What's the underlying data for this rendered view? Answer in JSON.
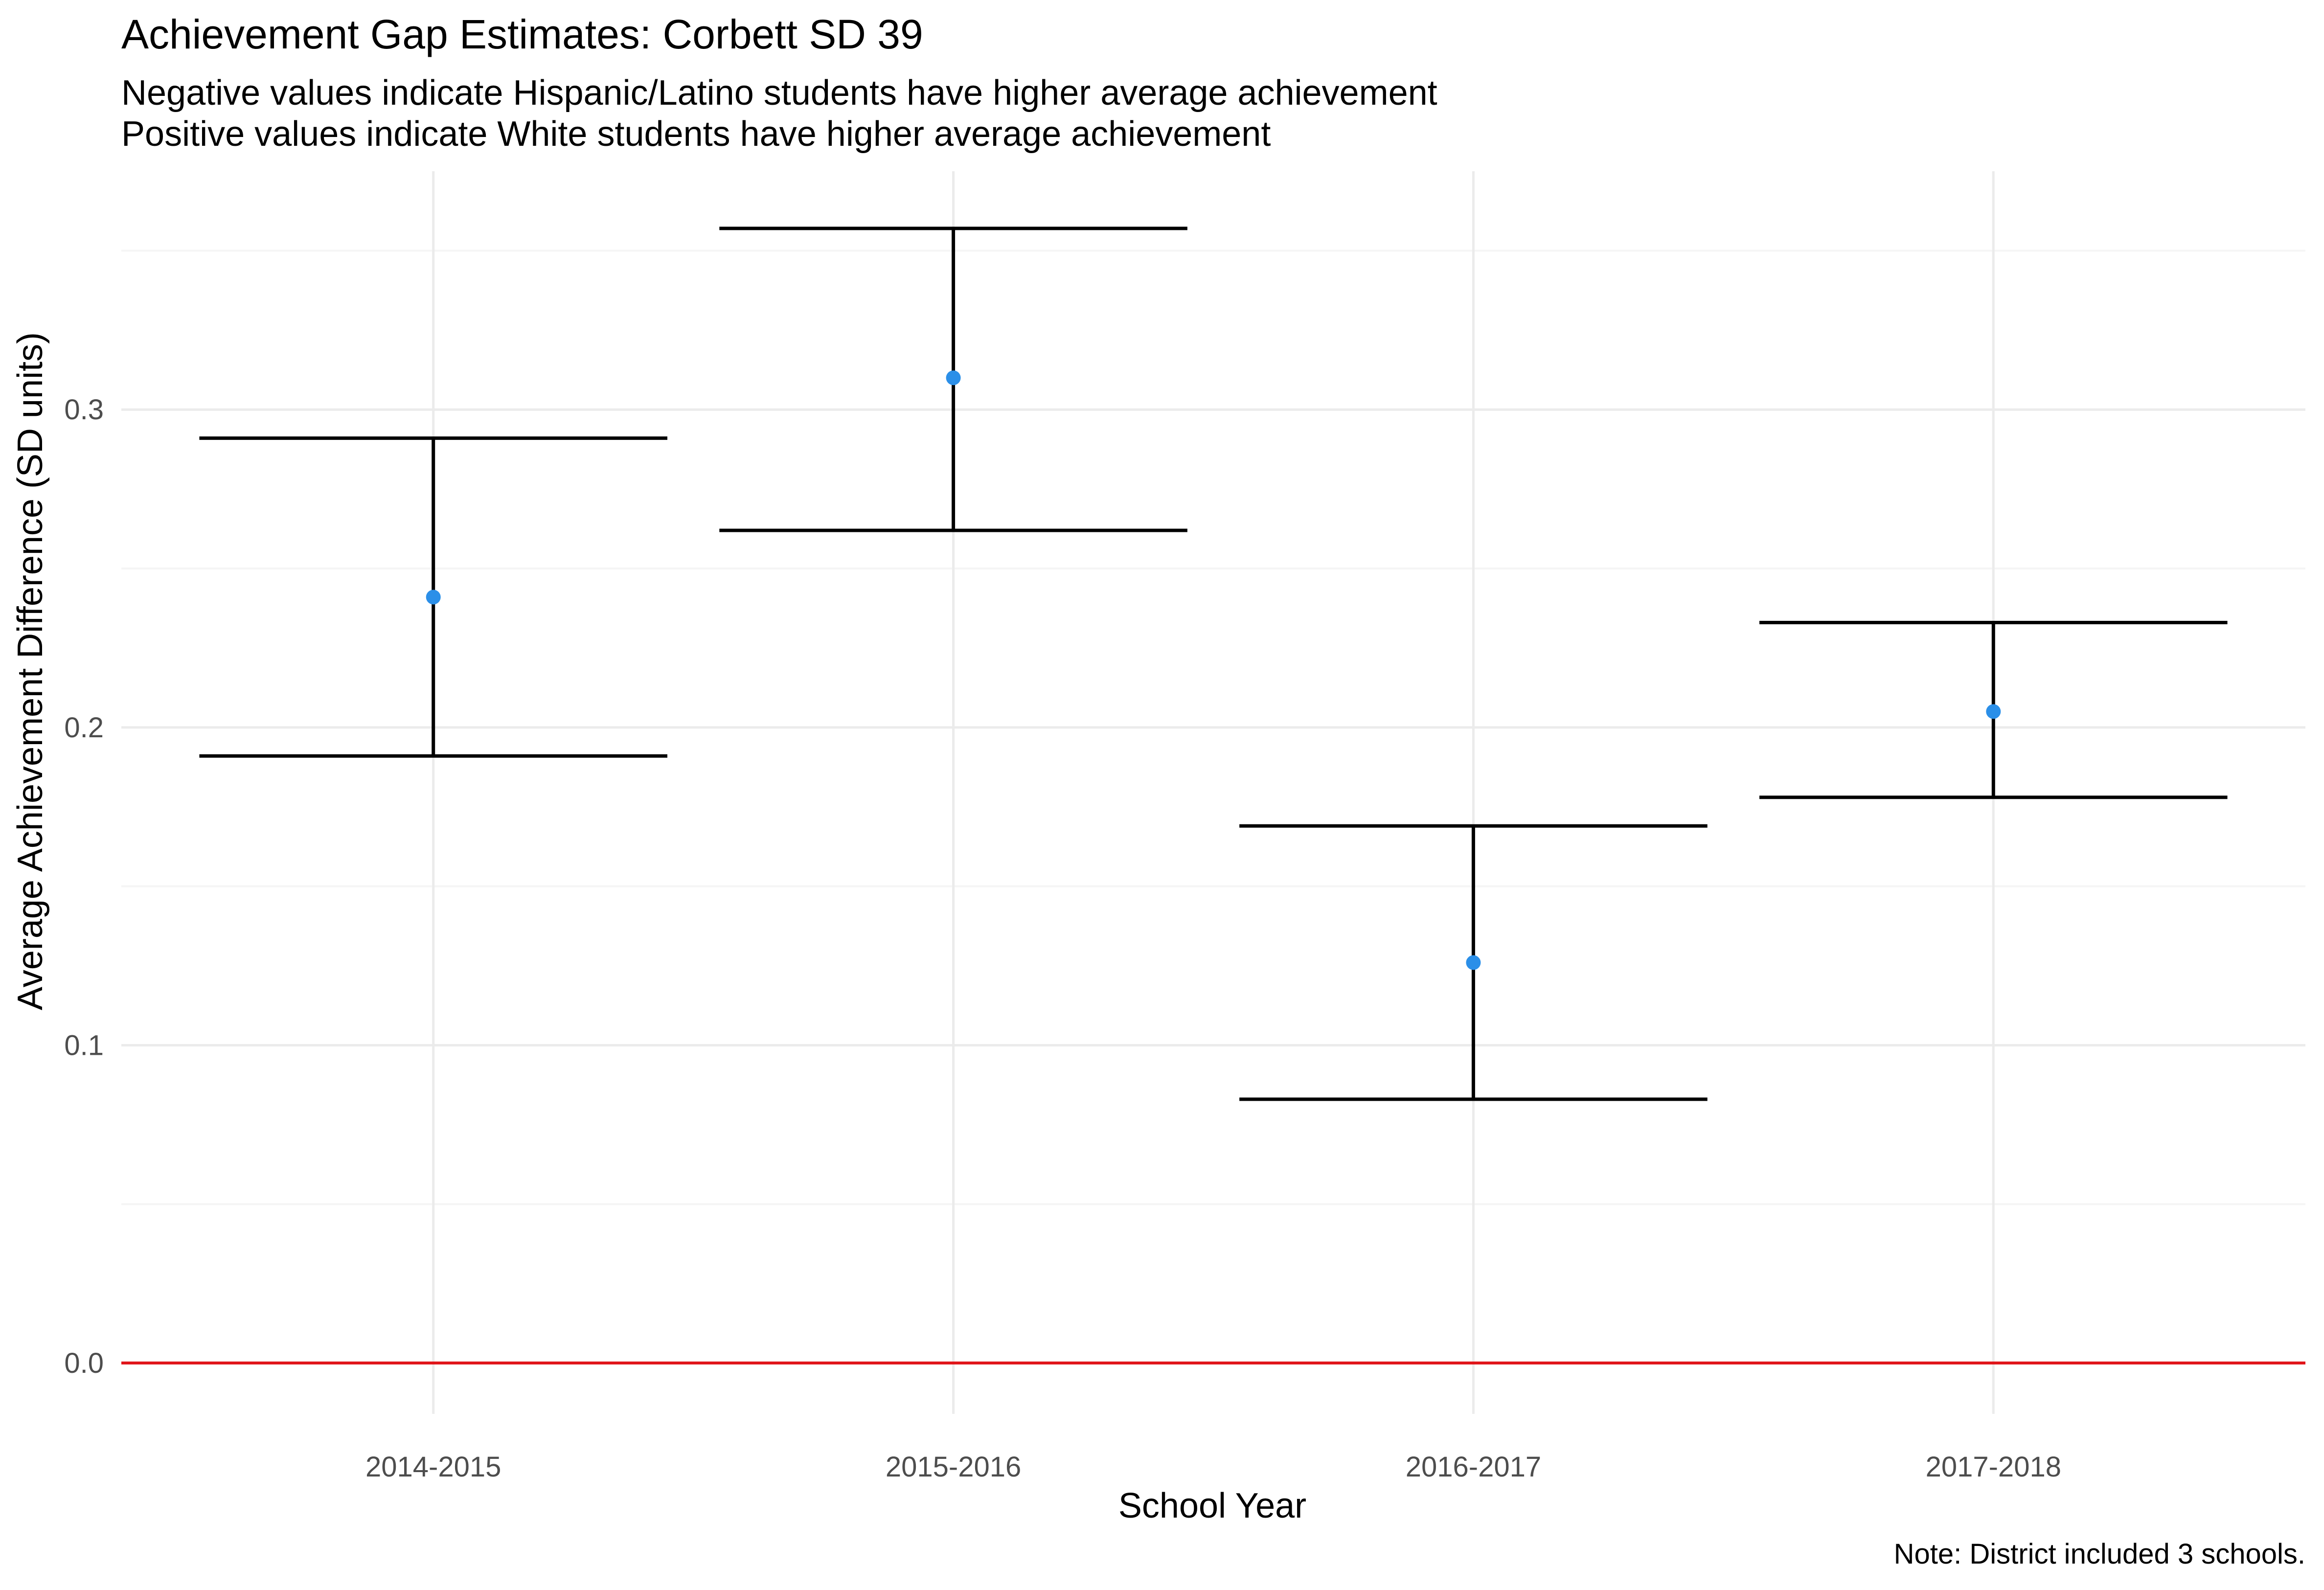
{
  "chart_data": {
    "type": "errorbar",
    "title": "Achievement Gap Estimates: Corbett SD 39",
    "subtitle_lines": [
      "Negative values indicate Hispanic/Latino students have higher average achievement",
      "Positive values indicate White students have higher average achievement"
    ],
    "xlabel": "School Year",
    "ylabel": "Average Achievement Difference (SD units)",
    "caption": "Note: District included 3 schools.",
    "categories": [
      "2014-2015",
      "2015-2016",
      "2016-2017",
      "2017-2018"
    ],
    "estimates": [
      0.241,
      0.31,
      0.126,
      0.205
    ],
    "lower": [
      0.191,
      0.262,
      0.083,
      0.178
    ],
    "upper": [
      0.291,
      0.357,
      0.169,
      0.233
    ],
    "ylim": [
      -0.016,
      0.375
    ],
    "y_ticks": [
      0.0,
      0.1,
      0.2,
      0.3
    ],
    "y_tick_labels": [
      "0.0",
      "0.1",
      "0.2",
      "0.3"
    ],
    "reference_line": 0.0,
    "grid": true,
    "legend": "none",
    "colors": {
      "point": "#2b8fe8",
      "errorbar": "#000000",
      "reference_line": "#e0161b",
      "grid_major": "#ebebeb",
      "grid_minor": "#f5f5f5"
    }
  }
}
